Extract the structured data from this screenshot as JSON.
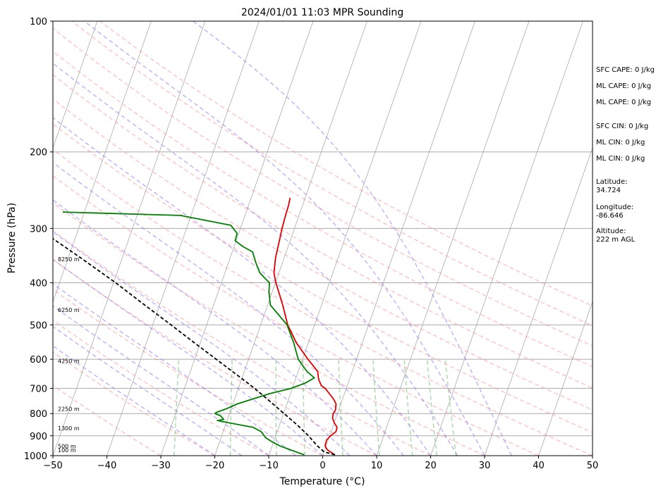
{
  "chart_data": {
    "type": "line",
    "chart_kind": "skew-T log-p sounding",
    "title": "2024/01/01 11:03 MPR Sounding",
    "xlabel": "Temperature (°C)",
    "ylabel": "Pressure (hPa)",
    "xlim": [
      -50,
      50
    ],
    "ylim": [
      1000,
      100
    ],
    "y_scale": "log",
    "x_ticks": [
      -50,
      -40,
      -30,
      -20,
      -10,
      0,
      10,
      20,
      30,
      40,
      50
    ],
    "x_tick_labels": [
      "−50",
      "−40",
      "−30",
      "−20",
      "−10",
      "0",
      "10",
      "20",
      "30",
      "40",
      "50"
    ],
    "y_ticks": [
      1000,
      900,
      800,
      700,
      600,
      500,
      400,
      300,
      200,
      100
    ],
    "y_tick_labels": [
      "1000",
      "900",
      "800",
      "700",
      "600",
      "500",
      "400",
      "300",
      "200",
      "100"
    ],
    "height_labels": [
      {
        "p": 970,
        "text": "100 m"
      },
      {
        "p": 950,
        "text": "500 m"
      },
      {
        "p": 865,
        "text": "1300 m"
      },
      {
        "p": 780,
        "text": "2250 m"
      },
      {
        "p": 605,
        "text": "4250 m"
      },
      {
        "p": 462,
        "text": "6250 m"
      },
      {
        "p": 353,
        "text": "8250 m"
      }
    ],
    "series": [
      {
        "name": "Temperature",
        "color": "#dd0000",
        "p": [
          995,
          970,
          950,
          920,
          900,
          880,
          860,
          840,
          820,
          800,
          785,
          760,
          740,
          720,
          700,
          690,
          670,
          660,
          640,
          600,
          550,
          500,
          450,
          400,
          380,
          350,
          320,
          300,
          280,
          265,
          255
        ],
        "t": [
          2.2,
          0.5,
          -0.2,
          -0.3,
          0.2,
          0.9,
          0.8,
          0.0,
          -0.6,
          -0.8,
          -0.6,
          -0.9,
          -1.7,
          -2.8,
          -3.9,
          -4.8,
          -5.6,
          -5.9,
          -6.4,
          -9.0,
          -12.2,
          -15.0,
          -17.2,
          -19.9,
          -20.9,
          -21.6,
          -22.0,
          -22.3,
          -22.5,
          -22.6,
          -22.8
        ]
      },
      {
        "name": "Dewpoint",
        "color": "#008000",
        "p": [
          995,
          980,
          950,
          930,
          910,
          880,
          860,
          850,
          830,
          825,
          810,
          800,
          795,
          780,
          760,
          720,
          700,
          680,
          662,
          640,
          600,
          550,
          500,
          450,
          420,
          400,
          380,
          360,
          340,
          330,
          320,
          308,
          295,
          280,
          275
        ],
        "t": [
          -3.5,
          -5.2,
          -8.5,
          -10.2,
          -11.7,
          -13.0,
          -14.8,
          -17.2,
          -21.8,
          -20.7,
          -21.5,
          -22.7,
          -22.5,
          -20.9,
          -19.2,
          -13.9,
          -10.2,
          -7.9,
          -6.6,
          -8.4,
          -10.8,
          -12.7,
          -15.1,
          -19.5,
          -20.6,
          -21.1,
          -23.5,
          -24.9,
          -26.2,
          -28.4,
          -30.2,
          -30.3,
          -32.0,
          -42.0,
          -64.0
        ]
      },
      {
        "name": "Parcel",
        "color": "#000000",
        "dashed": true,
        "p": [
          995,
          980,
          950,
          920,
          900,
          850,
          800,
          750,
          700,
          650,
          600,
          550,
          500,
          450,
          400,
          350,
          300,
          280
        ],
        "t": [
          2.2,
          0.0,
          -1.6,
          -3.0,
          -3.9,
          -6.7,
          -9.9,
          -13.3,
          -17.0,
          -21.3,
          -26.0,
          -31.1,
          -36.6,
          -42.8,
          -49.6,
          -57.8,
          -67.5,
          -71.3
        ]
      }
    ],
    "dry_adiabat_thetas_c": [
      -30,
      -20,
      -10,
      0,
      10,
      20,
      30,
      40,
      50,
      60,
      70,
      80,
      90,
      100,
      110,
      120
    ],
    "moist_adiabat_start_temps_c": [
      -20,
      -15,
      -10,
      -5,
      0,
      5,
      10,
      15,
      20,
      25,
      30,
      35
    ],
    "mixing_ratio_lines_gkg": [
      0.4,
      1,
      2,
      3,
      5,
      8,
      12,
      16,
      20
    ],
    "isotherm_spacing_c": 10,
    "grid": true,
    "stats": [
      "SFC CAPE: 0 J/kg",
      "ML CAPE: 0 J/kg",
      "ML CAPE: 0 J/kg",
      "SFC CIN: 0 J/kg",
      "ML CIN: 0 J/kg",
      "ML CIN: 0 J/kg"
    ],
    "location": [
      {
        "label": "Latitude:",
        "value": "34.724"
      },
      {
        "label": "Longitude:",
        "value": "-86.646"
      },
      {
        "label": "Altitude:",
        "value": "222 m AGL"
      }
    ],
    "colors": {
      "isotherm": "#aaaaaa",
      "dry_adiabat": "#ff8080",
      "moist_adiabat": "#8a6cf0",
      "mixing_ratio": "#5cb85c"
    }
  }
}
